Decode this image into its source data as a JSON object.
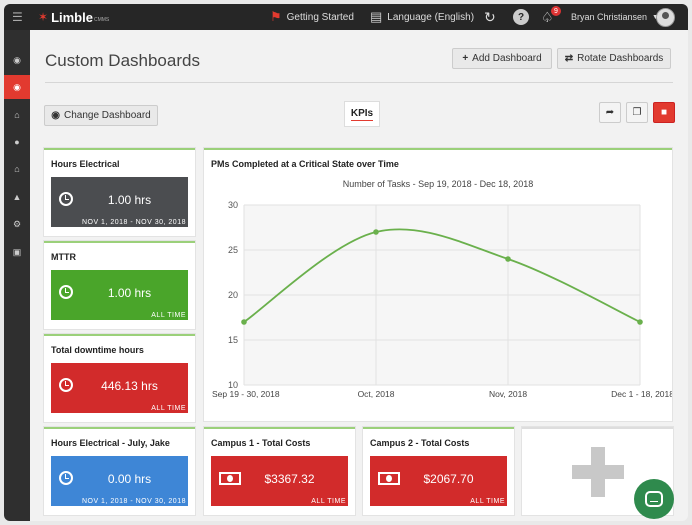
{
  "app": {
    "logo": "Limble",
    "logo_sub": "CMMS"
  },
  "topbar": {
    "getting_started": "Getting Started",
    "language": "Language (English)",
    "notification_count": "9",
    "help": "?",
    "user_name": "Bryan Christiansen"
  },
  "page": {
    "title": "Custom Dashboards"
  },
  "buttons": {
    "add_dashboard": "Add Dashboard",
    "rotate_dashboards": "Rotate Dashboards",
    "change_dashboard": "Change Dashboard"
  },
  "tabs": {
    "active": "KPIs"
  },
  "kpis": [
    {
      "title": "Hours Electrical",
      "value": "1.00 hrs",
      "footer": "NOV 1, 2018 - NOV 30, 2018",
      "color": "#4b4d50"
    },
    {
      "title": "MTTR",
      "value": "1.00 hrs",
      "footer": "ALL TIME",
      "color": "#4aa52a"
    },
    {
      "title": "Total downtime hours",
      "value": "446.13 hrs",
      "footer": "ALL TIME",
      "color": "#d22b2b"
    },
    {
      "title": "Hours Electrical - July, Jake",
      "value": "0.00 hrs",
      "footer": "NOV 1, 2018 - NOV 30, 2018",
      "color": "#3e86d6"
    },
    {
      "title": "Campus 1 - Total Costs",
      "value": "$3367.32",
      "footer": "ALL TIME",
      "color": "#d22b2b"
    },
    {
      "title": "Campus 2 - Total Costs",
      "value": "$2067.70",
      "footer": "ALL TIME",
      "color": "#d22b2b"
    }
  ],
  "chart_data": {
    "type": "line",
    "title": "PMs Completed at a Critical State over Time",
    "subtitle": "Number of Tasks - Sep 19, 2018 - Dec 18, 2018",
    "categories": [
      "Sep 19 - 30, 2018",
      "Oct, 2018",
      "Nov, 2018",
      "Dec 1 - 18, 2018"
    ],
    "values": [
      17,
      27,
      24,
      17
    ],
    "ylim": [
      10,
      30
    ],
    "yticks": [
      10,
      15,
      20,
      25,
      30
    ],
    "grid": true,
    "color": "#6ab04c"
  }
}
